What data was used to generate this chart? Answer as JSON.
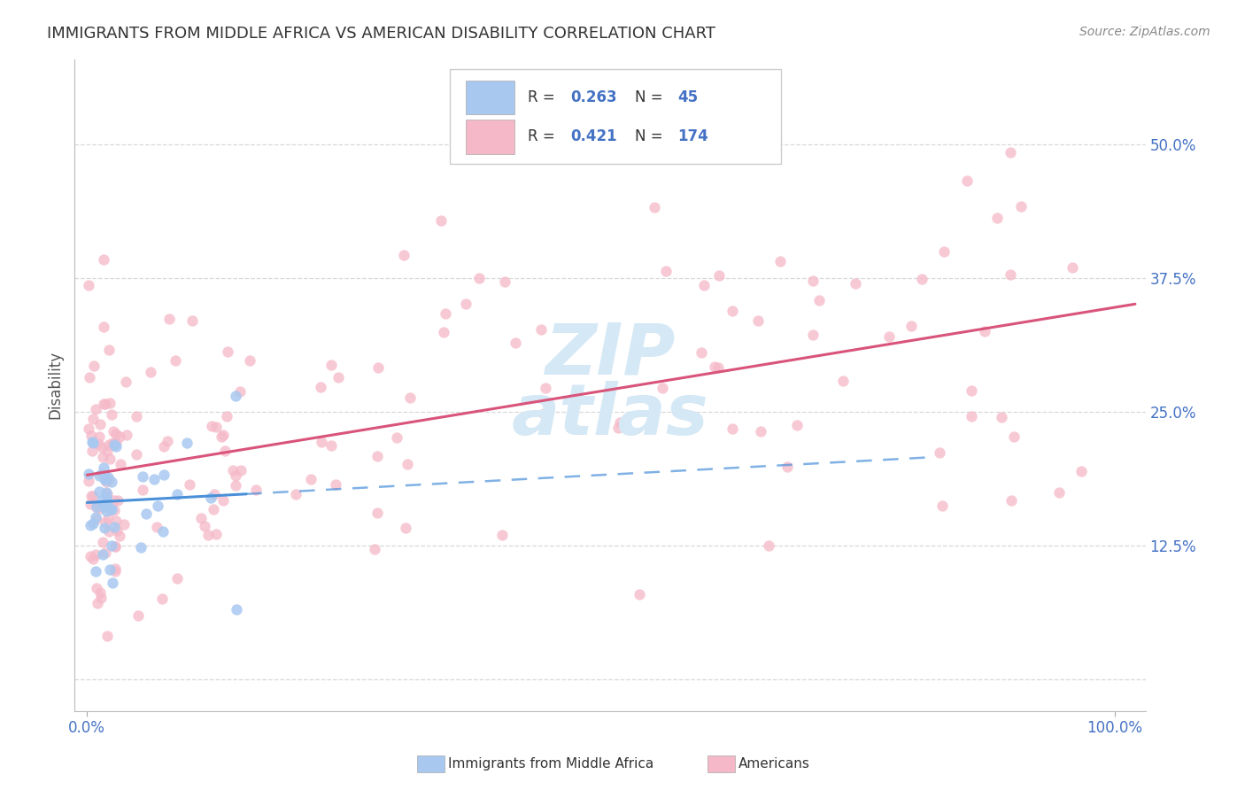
{
  "title": "IMMIGRANTS FROM MIDDLE AFRICA VS AMERICAN DISABILITY CORRELATION CHART",
  "source": "Source: ZipAtlas.com",
  "ylabel": "Disability",
  "blue_color": "#a8c8f0",
  "pink_color": "#f5b8c8",
  "trend_blue": "#4a90d9",
  "trend_pink": "#d9547a",
  "watermark_color": "#d5e8f5",
  "background_color": "#ffffff",
  "grid_color": "#d8d8d8",
  "ytick_color": "#4472c4",
  "xtick_color": "#4472c4",
  "title_color": "#333333",
  "legend_r1": "0.263",
  "legend_n1": "45",
  "legend_r2": "0.421",
  "legend_n2": "174"
}
